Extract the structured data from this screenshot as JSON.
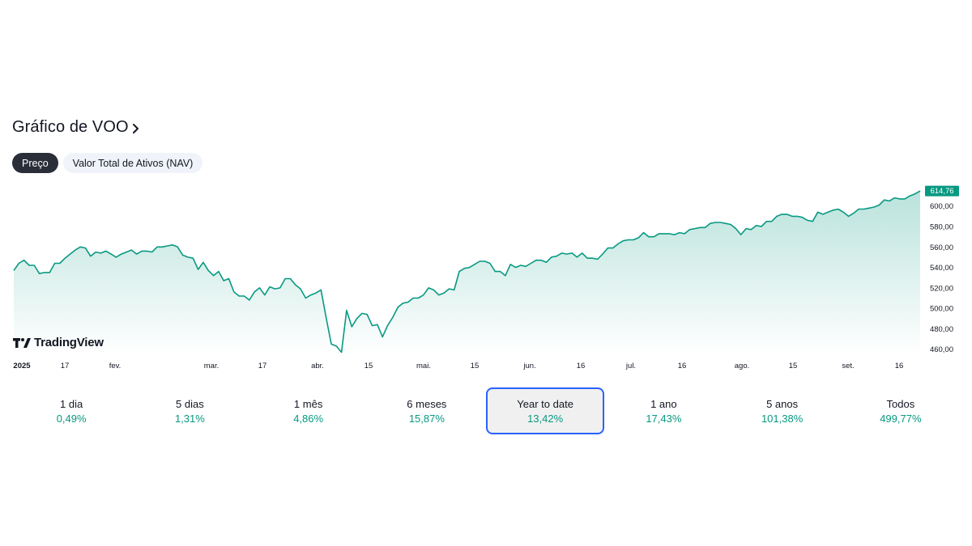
{
  "header": {
    "title": "Gráfico de VOO"
  },
  "tabs": [
    {
      "label": "Preço",
      "active": true
    },
    {
      "label": "Valor Total de Ativos (NAV)",
      "active": false
    }
  ],
  "brand": {
    "logo_text": "TradingView"
  },
  "colors": {
    "line": "#089981",
    "accent": "#2962ff",
    "positive": "#089981"
  },
  "chart_data": {
    "type": "area",
    "current_price_label": "614,76",
    "y_ticks": [
      "600,00",
      "580,00",
      "560,00",
      "540,00",
      "520,00",
      "500,00",
      "480,00",
      "460,00"
    ],
    "ylim": [
      455,
      618
    ],
    "x_ticks": [
      "2025",
      "17",
      "fev.",
      "mar.",
      "17",
      "abr.",
      "15",
      "mai.",
      "15",
      "jun.",
      "16",
      "jul.",
      "16",
      "ago.",
      "15",
      "set.",
      "16"
    ],
    "series": [
      {
        "values": [
          537,
          544,
          547,
          542,
          542,
          534,
          535,
          535,
          544,
          544,
          549,
          553,
          557,
          560,
          559,
          551,
          555,
          554,
          556,
          553,
          550,
          553,
          555,
          557,
          553,
          556,
          556,
          555,
          560,
          560,
          561,
          562,
          560,
          552,
          550,
          549,
          538,
          545,
          537,
          532,
          536,
          527,
          529,
          516,
          512,
          512,
          508,
          516,
          520,
          513,
          521,
          519,
          520,
          529,
          529,
          523,
          519,
          510,
          513,
          515,
          518,
          491,
          465,
          463,
          457,
          498,
          482,
          490,
          495,
          494,
          483,
          484,
          472,
          483,
          491,
          501,
          505,
          506,
          510,
          510,
          513,
          520,
          518,
          513,
          515,
          519,
          518,
          536,
          539,
          540,
          543,
          546,
          546,
          544,
          536,
          536,
          532,
          543,
          540,
          542,
          541,
          544,
          547,
          547,
          545,
          550,
          551,
          554,
          553,
          554,
          550,
          554,
          549,
          549,
          548,
          553,
          559,
          559,
          563,
          566,
          567,
          567,
          569,
          574,
          570,
          570,
          573,
          573,
          573,
          572,
          574,
          573,
          577,
          578,
          579,
          579,
          583,
          584,
          584,
          583,
          582,
          578,
          572,
          578,
          577,
          581,
          580,
          585,
          585,
          590,
          592,
          592,
          590,
          590,
          589,
          586,
          585,
          594,
          592,
          594,
          596,
          597,
          594,
          590,
          593,
          597,
          597,
          598,
          599,
          601,
          606,
          605,
          608,
          607,
          607,
          610,
          612,
          614.76
        ]
      }
    ],
    "grid": false,
    "title": ""
  },
  "periods": [
    {
      "label": "1 dia",
      "value": "0,49%"
    },
    {
      "label": "5 dias",
      "value": "1,31%"
    },
    {
      "label": "1 mês",
      "value": "4,86%"
    },
    {
      "label": "6 meses",
      "value": "15,87%"
    },
    {
      "label": "Year to date",
      "value": "13,42%",
      "selected": true
    },
    {
      "label": "1 ano",
      "value": "17,43%"
    },
    {
      "label": "5 anos",
      "value": "101,38%"
    },
    {
      "label": "Todos",
      "value": "499,77%"
    }
  ]
}
